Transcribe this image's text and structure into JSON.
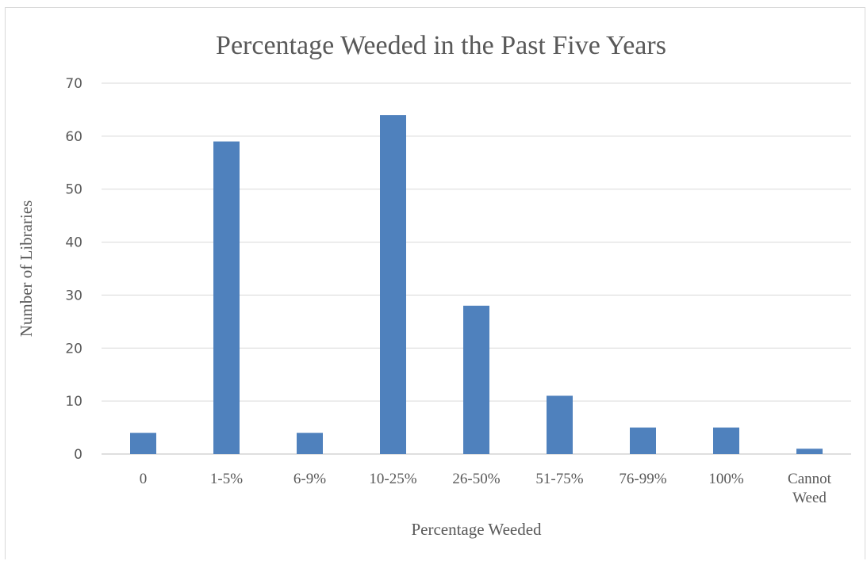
{
  "chart_data": {
    "type": "bar",
    "title": "Percentage Weeded in the Past Five Years",
    "xlabel": "Percentage Weeded",
    "ylabel": "Number of Libraries",
    "categories": [
      "0",
      "1-5%",
      "6-9%",
      "10-25%",
      "26-50%",
      "51-75%",
      "76-99%",
      "100%",
      "Cannot Weed"
    ],
    "values": [
      4,
      59,
      4,
      64,
      28,
      11,
      5,
      5,
      1
    ],
    "ylim": [
      0,
      70
    ],
    "yticks": [
      "0",
      "10",
      "20",
      "30",
      "40",
      "50",
      "60",
      "70"
    ],
    "grid": true,
    "legend": "none",
    "bar_color": "#4f81bd",
    "grid_color": "#d9d9d9",
    "text_color": "#595959"
  }
}
